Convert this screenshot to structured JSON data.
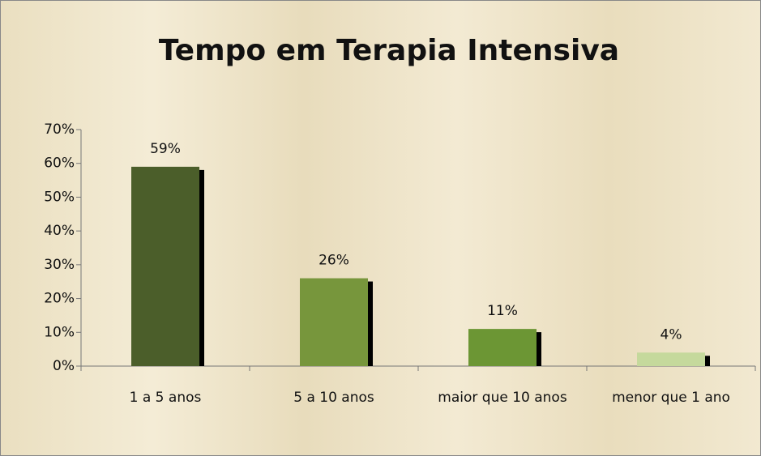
{
  "chart_data": {
    "type": "bar",
    "title": "Tempo em Terapia Intensiva",
    "categories": [
      "1 a 5 anos",
      "5 a 10 anos",
      "maior que 10 anos",
      "menor que 1 ano"
    ],
    "values": [
      59,
      26,
      11,
      4
    ],
    "value_labels": [
      "59%",
      "26%",
      "11%",
      "4%"
    ],
    "colors": [
      "#4b5e2a",
      "#77963c",
      "#6c9634",
      "#c5d99c"
    ],
    "ylim": [
      0,
      70
    ],
    "yticks": [
      {
        "value": 0,
        "label": "0%"
      },
      {
        "value": 10,
        "label": "10%"
      },
      {
        "value": 20,
        "label": "20%"
      },
      {
        "value": 30,
        "label": "30%"
      },
      {
        "value": 40,
        "label": "40%"
      },
      {
        "value": 50,
        "label": "50%"
      },
      {
        "value": 60,
        "label": "60%"
      },
      {
        "value": 70,
        "label": "70%"
      }
    ]
  }
}
